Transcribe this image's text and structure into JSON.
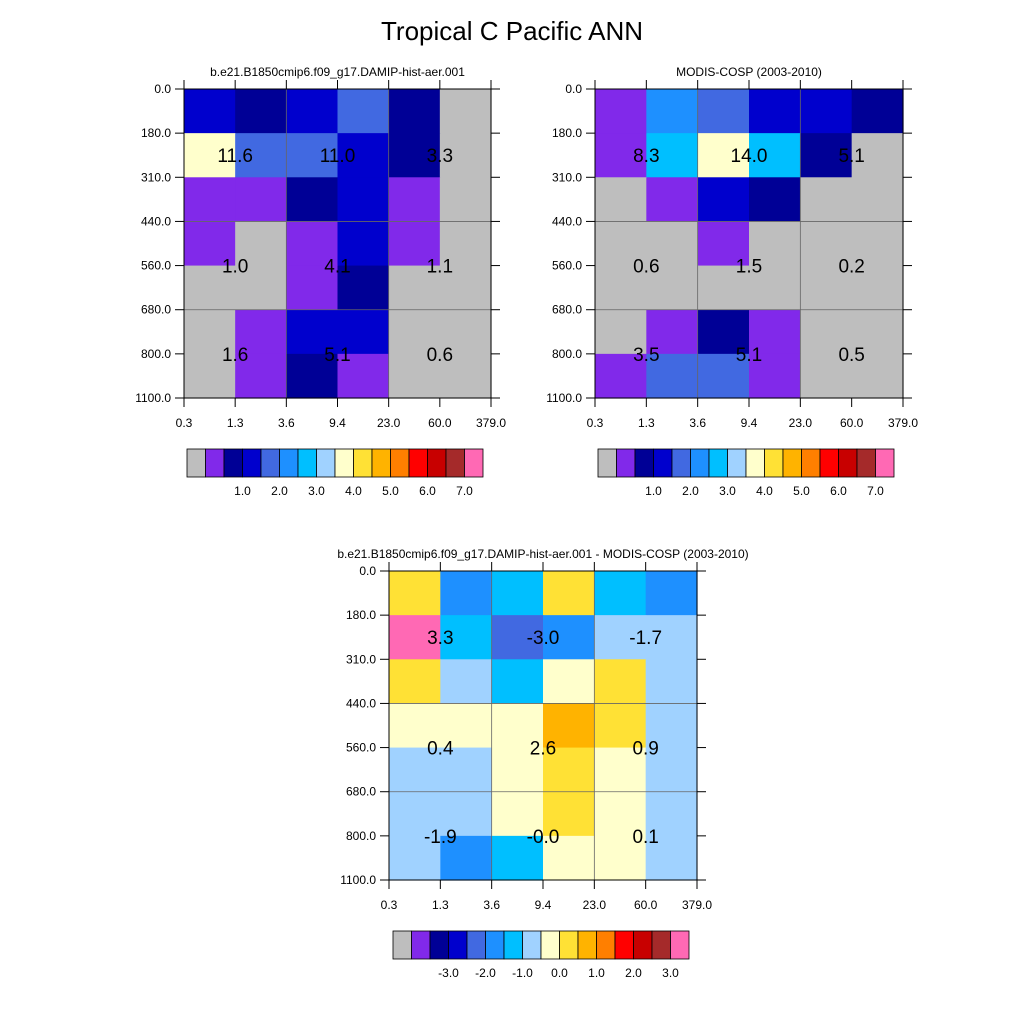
{
  "page": {
    "title": "Tropical C Pacific ANN"
  },
  "palette": {
    "colors": [
      "#bebebe",
      "#8129ea",
      "#000096",
      "#0000cd",
      "#4169e1",
      "#1e90ff",
      "#00bfff",
      "#a0d2ff",
      "#ffffcc",
      "#ffe135",
      "#ffb300",
      "#ff7f00",
      "#ff0000",
      "#c80000",
      "#a52a2a",
      "#ff69b4"
    ]
  },
  "chart_data": [
    {
      "type": "heatmap",
      "title": "b.e21.B1850cmip6.f09_g17.DAMIP-hist-aer.001",
      "x_tick_labels": [
        "0.3",
        "1.3",
        "3.6",
        "9.4",
        "23.0",
        "60.0",
        "379.0"
      ],
      "y_tick_labels": [
        "0.0",
        "180.0",
        "310.0",
        "440.0",
        "560.0",
        "680.0",
        "800.0",
        "1100.0"
      ],
      "cell_color_index": [
        [
          3,
          2,
          3,
          4,
          2,
          0
        ],
        [
          8,
          4,
          4,
          3,
          2,
          0
        ],
        [
          1,
          1,
          2,
          3,
          1,
          0
        ],
        [
          1,
          0,
          1,
          3,
          1,
          0
        ],
        [
          0,
          0,
          1,
          2,
          0,
          0
        ],
        [
          0,
          1,
          3,
          3,
          0,
          0
        ],
        [
          0,
          1,
          2,
          1,
          0,
          0
        ]
      ],
      "block_annotations": [
        {
          "row_block": 0,
          "col_block": 0,
          "text": "11.6"
        },
        {
          "row_block": 0,
          "col_block": 1,
          "text": "11.0"
        },
        {
          "row_block": 0,
          "col_block": 2,
          "text": "3.3"
        },
        {
          "row_block": 1,
          "col_block": 0,
          "text": "1.0"
        },
        {
          "row_block": 1,
          "col_block": 1,
          "text": "4.1"
        },
        {
          "row_block": 1,
          "col_block": 2,
          "text": "1.1"
        },
        {
          "row_block": 2,
          "col_block": 0,
          "text": "1.6"
        },
        {
          "row_block": 2,
          "col_block": 1,
          "text": "5.1"
        },
        {
          "row_block": 2,
          "col_block": 2,
          "text": "0.6"
        }
      ],
      "colorbar_labels": [
        "1.0",
        "2.0",
        "3.0",
        "4.0",
        "5.0",
        "6.0",
        "7.0"
      ]
    },
    {
      "type": "heatmap",
      "title": "MODIS-COSP (2003-2010)",
      "x_tick_labels": [
        "0.3",
        "1.3",
        "3.6",
        "9.4",
        "23.0",
        "60.0",
        "379.0"
      ],
      "y_tick_labels": [
        "0.0",
        "180.0",
        "310.0",
        "440.0",
        "560.0",
        "680.0",
        "800.0",
        "1100.0"
      ],
      "cell_color_index": [
        [
          1,
          5,
          4,
          3,
          3,
          2
        ],
        [
          1,
          6,
          8,
          6,
          2,
          0
        ],
        [
          0,
          1,
          3,
          2,
          0,
          0
        ],
        [
          0,
          0,
          1,
          0,
          0,
          0
        ],
        [
          0,
          0,
          0,
          0,
          0,
          0
        ],
        [
          0,
          1,
          2,
          1,
          0,
          0
        ],
        [
          1,
          4,
          4,
          1,
          0,
          0
        ]
      ],
      "block_annotations": [
        {
          "row_block": 0,
          "col_block": 0,
          "text": "8.3"
        },
        {
          "row_block": 0,
          "col_block": 1,
          "text": "14.0"
        },
        {
          "row_block": 0,
          "col_block": 2,
          "text": "5.1"
        },
        {
          "row_block": 1,
          "col_block": 0,
          "text": "0.6"
        },
        {
          "row_block": 1,
          "col_block": 1,
          "text": "1.5"
        },
        {
          "row_block": 1,
          "col_block": 2,
          "text": "0.2"
        },
        {
          "row_block": 2,
          "col_block": 0,
          "text": "3.5"
        },
        {
          "row_block": 2,
          "col_block": 1,
          "text": "5.1"
        },
        {
          "row_block": 2,
          "col_block": 2,
          "text": "0.5"
        }
      ],
      "colorbar_labels": [
        "1.0",
        "2.0",
        "3.0",
        "4.0",
        "5.0",
        "6.0",
        "7.0"
      ]
    },
    {
      "type": "heatmap",
      "title": "b.e21.B1850cmip6.f09_g17.DAMIP-hist-aer.001 - MODIS-COSP (2003-2010)",
      "x_tick_labels": [
        "0.3",
        "1.3",
        "3.6",
        "9.4",
        "23.0",
        "60.0",
        "379.0"
      ],
      "y_tick_labels": [
        "0.0",
        "180.0",
        "310.0",
        "440.0",
        "560.0",
        "680.0",
        "800.0",
        "1100.0"
      ],
      "cell_color_index": [
        [
          9,
          5,
          6,
          9,
          6,
          5
        ],
        [
          15,
          6,
          4,
          5,
          7,
          7
        ],
        [
          9,
          7,
          6,
          8,
          9,
          7
        ],
        [
          8,
          8,
          8,
          10,
          9,
          7
        ],
        [
          7,
          7,
          8,
          9,
          8,
          7
        ],
        [
          7,
          7,
          8,
          9,
          8,
          7
        ],
        [
          7,
          5,
          6,
          8,
          8,
          7
        ]
      ],
      "block_annotations": [
        {
          "row_block": 0,
          "col_block": 0,
          "text": "3.3"
        },
        {
          "row_block": 0,
          "col_block": 1,
          "text": "-3.0"
        },
        {
          "row_block": 0,
          "col_block": 2,
          "text": "-1.7"
        },
        {
          "row_block": 1,
          "col_block": 0,
          "text": "0.4"
        },
        {
          "row_block": 1,
          "col_block": 1,
          "text": "2.6"
        },
        {
          "row_block": 1,
          "col_block": 2,
          "text": "0.9"
        },
        {
          "row_block": 2,
          "col_block": 0,
          "text": "-1.9"
        },
        {
          "row_block": 2,
          "col_block": 1,
          "text": "-0.0"
        },
        {
          "row_block": 2,
          "col_block": 2,
          "text": "0.1"
        }
      ],
      "colorbar_labels": [
        "-3.0",
        "-2.0",
        "-1.0",
        "0.0",
        "1.0",
        "2.0",
        "3.0"
      ]
    }
  ]
}
